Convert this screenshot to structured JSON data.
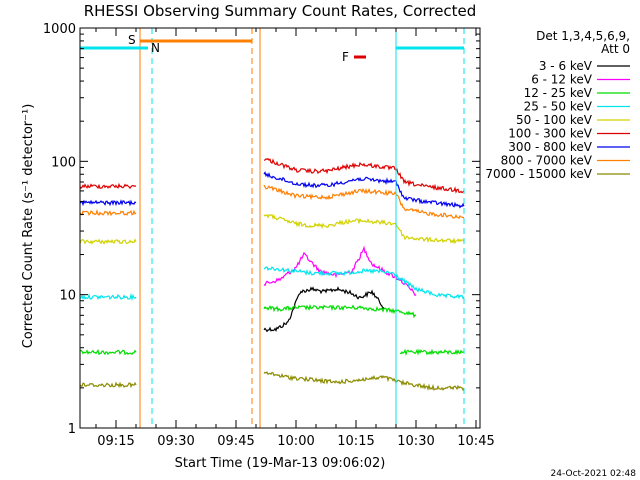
{
  "chart_data": {
    "type": "line",
    "title": "RHESSI Observing Summary Count Rates, Corrected",
    "xlabel": "Start Time (19-Mar-13 09:06:02)",
    "ylabel": "Corrected Count Rate (s⁻¹ detector⁻¹)",
    "y_scale": "log",
    "ylim": [
      1,
      1000
    ],
    "x_range": [
      "09:06",
      "10:46"
    ],
    "x_ticks": [
      "09:15",
      "09:30",
      "09:45",
      "10:00",
      "10:15",
      "10:30",
      "10:45"
    ],
    "y_ticks": [
      "1",
      "10",
      "100",
      "1000"
    ],
    "legend": {
      "title_line1": "Det 1,3,4,5,6,9,",
      "title_line2": "Att 0",
      "placement": "top-right outside"
    },
    "markers": [
      {
        "label": "S",
        "color": "#ff7f00",
        "start": "09:21",
        "end": "09:49"
      },
      {
        "label": "N",
        "color": "#00e5ee",
        "start": "09:06",
        "end": "09:23"
      },
      {
        "label": "F",
        "color": "#dd0000",
        "at": "10:15"
      }
    ],
    "vlines": [
      {
        "time": "09:21",
        "color": "#ff7f00",
        "style": "solid"
      },
      {
        "time": "09:49",
        "color": "#ff7f00",
        "style": "dashed"
      },
      {
        "time": "09:51",
        "color": "#ff7f00",
        "style": "solid"
      },
      {
        "time": "09:24",
        "color": "#00e5ee",
        "style": "dashed"
      },
      {
        "time": "10:25",
        "color": "#00e5ee",
        "style": "solid"
      },
      {
        "time": "10:42",
        "color": "#00e5ee",
        "style": "dashed"
      }
    ],
    "series": [
      {
        "name": "3 - 6 keV",
        "color": "#000000",
        "segments": [
          {
            "x": [
              "09:52",
              "09:55",
              "09:58",
              "10:01",
              "10:04",
              "10:07",
              "10:10",
              "10:13",
              "10:16",
              "10:19",
              "10:22"
            ],
            "y": [
              5.5,
              5.5,
              6.2,
              10.5,
              11,
              10.5,
              11,
              10.5,
              9.5,
              10.5,
              8
            ]
          }
        ]
      },
      {
        "name": "6 - 12 keV",
        "color": "#ff00ff",
        "segments": [
          {
            "x": [
              "09:52",
              "09:56",
              "10:00",
              "10:02",
              "10:06",
              "10:10",
              "10:14",
              "10:17",
              "10:19",
              "10:22",
              "10:26",
              "10:30"
            ],
            "y": [
              12,
              13,
              16,
              20,
              15,
              14,
              15,
              22,
              17,
              15,
              13,
              10
            ]
          }
        ]
      },
      {
        "name": "12 - 25 keV",
        "color": "#00dd00",
        "segments": [
          {
            "x": [
              "09:06",
              "09:20"
            ],
            "y": [
              3.7,
              3.7
            ]
          },
          {
            "x": [
              "09:52",
              "09:56",
              "10:00",
              "10:04",
              "10:08",
              "10:12",
              "10:16",
              "10:20",
              "10:26",
              "10:30"
            ],
            "y": [
              8,
              7.8,
              8,
              8,
              8,
              8,
              8,
              7.8,
              7.5,
              7
            ]
          },
          {
            "x": [
              "10:26",
              "10:42"
            ],
            "y": [
              3.7,
              3.7
            ]
          }
        ]
      },
      {
        "name": "25 - 50 keV",
        "color": "#00e5ee",
        "segments": [
          {
            "x": [
              "09:06",
              "09:20"
            ],
            "y": [
              9.6,
              9.6
            ]
          },
          {
            "x": [
              "09:52",
              "09:56",
              "10:00",
              "10:04",
              "10:08",
              "10:12",
              "10:16",
              "10:20",
              "10:24",
              "10:30",
              "10:36",
              "10:42"
            ],
            "y": [
              16,
              15.5,
              15,
              14.5,
              14.5,
              14.5,
              15,
              15,
              14.5,
              11,
              9.8,
              9.6
            ]
          }
        ]
      },
      {
        "name": "50 - 100 keV",
        "color": "#d2d200",
        "segments": [
          {
            "x": [
              "09:06",
              "09:20"
            ],
            "y": [
              25,
              25
            ]
          },
          {
            "x": [
              "09:52",
              "09:56",
              "10:00",
              "10:04",
              "10:08",
              "10:12",
              "10:16",
              "10:20",
              "10:25",
              "10:27",
              "10:32",
              "10:42"
            ],
            "y": [
              40,
              37,
              34,
              33,
              33,
              35,
              36,
              35,
              34,
              27,
              26,
              25
            ]
          }
        ]
      },
      {
        "name": "100 - 300 keV",
        "color": "#dd0000",
        "segments": [
          {
            "x": [
              "09:06",
              "09:20"
            ],
            "y": [
              65,
              65
            ]
          },
          {
            "x": [
              "09:52",
              "09:56",
              "10:00",
              "10:04",
              "10:08",
              "10:12",
              "10:16",
              "10:20",
              "10:25",
              "10:27",
              "10:32",
              "10:42"
            ],
            "y": [
              105,
              95,
              86,
              84,
              85,
              90,
              95,
              92,
              88,
              70,
              65,
              60
            ]
          }
        ]
      },
      {
        "name": "300 - 800 keV",
        "color": "#0000ee",
        "segments": [
          {
            "x": [
              "09:06",
              "09:20"
            ],
            "y": [
              49,
              49
            ]
          },
          {
            "x": [
              "09:52",
              "09:56",
              "10:00",
              "10:04",
              "10:08",
              "10:12",
              "10:16",
              "10:20",
              "10:25",
              "10:27",
              "10:32",
              "10:42"
            ],
            "y": [
              80,
              74,
              68,
              66,
              66,
              70,
              74,
              72,
              70,
              53,
              50,
              46
            ]
          }
        ]
      },
      {
        "name": "800 - 7000 keV",
        "color": "#ff7f00",
        "segments": [
          {
            "x": [
              "09:06",
              "09:20"
            ],
            "y": [
              41,
              41
            ]
          },
          {
            "x": [
              "09:52",
              "09:56",
              "10:00",
              "10:04",
              "10:08",
              "10:12",
              "10:16",
              "10:20",
              "10:25",
              "10:27",
              "10:32",
              "10:42"
            ],
            "y": [
              65,
              60,
              55,
              54,
              54,
              57,
              60,
              59,
              57,
              44,
              41,
              38
            ]
          }
        ]
      },
      {
        "name": "7000 - 15000 keV",
        "color": "#8b8b00",
        "segments": [
          {
            "x": [
              "09:06",
              "09:20"
            ],
            "y": [
              2.1,
              2.1
            ]
          },
          {
            "x": [
              "09:52",
              "09:58",
              "10:04",
              "10:10",
              "10:16",
              "10:22",
              "10:26",
              "10:34",
              "10:42"
            ],
            "y": [
              2.6,
              2.4,
              2.3,
              2.2,
              2.3,
              2.4,
              2.2,
              2.0,
              2.0
            ]
          }
        ]
      }
    ]
  },
  "timestamp": "24-Oct-2021 02:48"
}
